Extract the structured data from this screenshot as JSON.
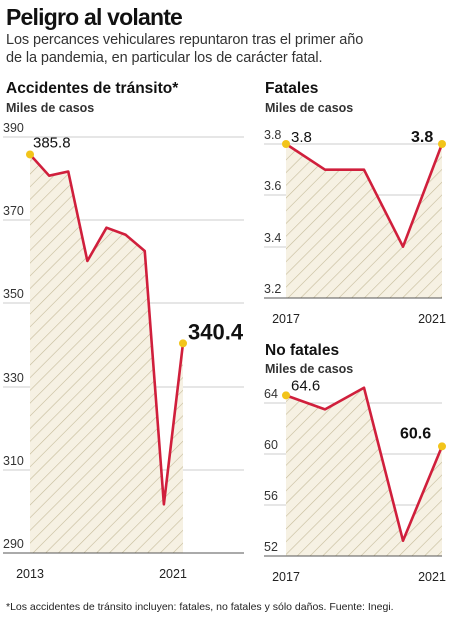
{
  "header": {
    "title": "Peligro al volante",
    "subtitle_line1": "Los percances vehiculares repuntaron tras el primer año",
    "subtitle_line2": "de la pandemia, en particular los de carácter fatal."
  },
  "footnote": "*Los accidentes de tránsito incluyen: fatales, no fatales y sólo daños. Fuente: Inegi.",
  "colors": {
    "line": "#d01f3c",
    "fill": "#f6f1e3",
    "hatch": "#c5bb9a",
    "endpoint": "#f2c41a",
    "axis": "#555555"
  },
  "chart_data": [
    {
      "type": "area",
      "title": "Accidentes de tránsito*",
      "ylabel": "Miles de casos",
      "x": [
        2013,
        2014,
        2015,
        2016,
        2017,
        2018,
        2019,
        2020,
        2021
      ],
      "values": [
        385.8,
        380.7,
        381.7,
        360.2,
        368.2,
        366.5,
        362.6,
        301.7,
        340.4
      ],
      "ylim": [
        290,
        390
      ],
      "yticks": [
        "390",
        "370",
        "350",
        "330",
        "310",
        "290"
      ],
      "xticks": [
        "2013",
        "2021"
      ],
      "start_label": "385.8",
      "end_label": "340.4"
    },
    {
      "type": "area",
      "title": "Fatales",
      "ylabel": "Miles de casos",
      "x": [
        2017,
        2018,
        2019,
        2020,
        2021
      ],
      "values": [
        3.8,
        3.7,
        3.7,
        3.4,
        3.8
      ],
      "ylim": [
        3.2,
        3.8
      ],
      "yticks": [
        "3.8",
        "3.6",
        "3.4",
        "3.2"
      ],
      "xticks": [
        "2017",
        "2021"
      ],
      "start_label": "3.8",
      "end_label": "3.8"
    },
    {
      "type": "area",
      "title": "No fatales",
      "ylabel": "Miles de casos",
      "x": [
        2017,
        2018,
        2019,
        2020,
        2021
      ],
      "values": [
        64.6,
        63.5,
        65.2,
        53.2,
        60.6
      ],
      "ylim": [
        52,
        64
      ],
      "yticks": [
        "64",
        "60",
        "56",
        "52"
      ],
      "xticks": [
        "2017",
        "2021"
      ],
      "start_label": "64.6",
      "end_label": "60.6"
    }
  ]
}
